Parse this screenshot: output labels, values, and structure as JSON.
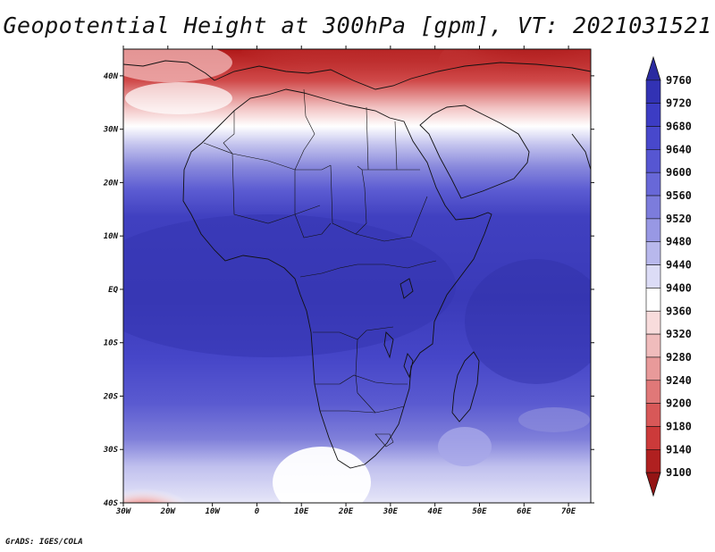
{
  "title": "Geopotential Height at 300hPa [gpm], VT: 2021031521",
  "credit": "GrADS: IGES/COLA",
  "map": {
    "lat_labels": [
      "40N",
      "30N",
      "20N",
      "10N",
      "EQ",
      "10S",
      "20S",
      "30S",
      "40S"
    ],
    "lon_labels": [
      "30W",
      "20W",
      "10W",
      "0",
      "10E",
      "20E",
      "30E",
      "40E",
      "50E",
      "60E",
      "70E"
    ],
    "lon_range": [
      -30,
      75
    ],
    "lat_range": [
      -40,
      45
    ]
  },
  "colorbar": {
    "levels": [
      "9760",
      "9720",
      "9680",
      "9640",
      "9600",
      "9560",
      "9520",
      "9480",
      "9440",
      "9400",
      "9360",
      "9320",
      "9280",
      "9240",
      "9200",
      "9180",
      "9140",
      "9100"
    ],
    "colors": [
      "#2a2aa0",
      "#3232b4",
      "#3c3cc4",
      "#4848cc",
      "#5656d2",
      "#6868d8",
      "#7c7cdc",
      "#9898e4",
      "#b8b8ec",
      "#dcdcf6",
      "#ffffff",
      "#f8dcdc",
      "#f0bcbc",
      "#e89a9a",
      "#e07878",
      "#d85858",
      "#cc3a3a",
      "#b02020",
      "#941414"
    ]
  }
}
